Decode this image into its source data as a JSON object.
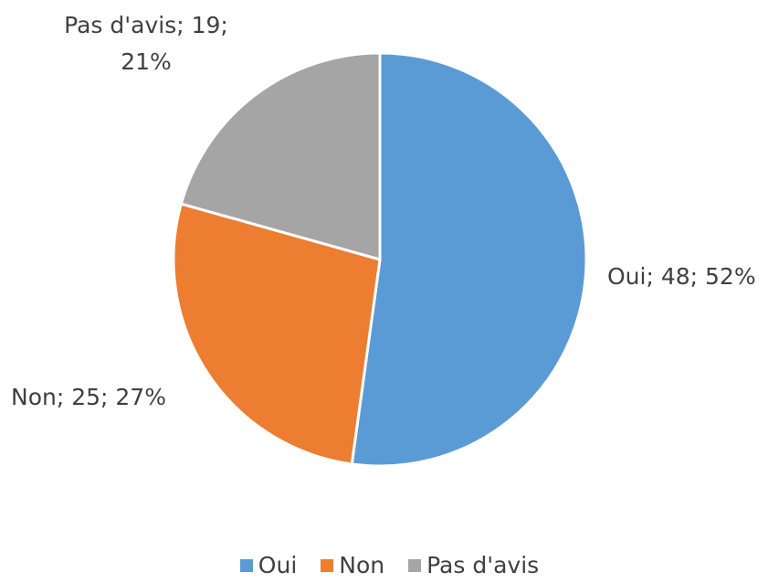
{
  "chart_data": {
    "type": "pie",
    "categories": [
      "Oui",
      "Non",
      "Pas d'avis"
    ],
    "values": [
      48,
      25,
      19
    ],
    "value_labels": [
      "Oui; 48; 52%",
      "Non; 25; 27%",
      "Pas d'avis; 19; 21%"
    ],
    "colors": [
      "#5b9bd5",
      "#ed7d31",
      "#a5a5a5"
    ],
    "legend": "bottom"
  }
}
